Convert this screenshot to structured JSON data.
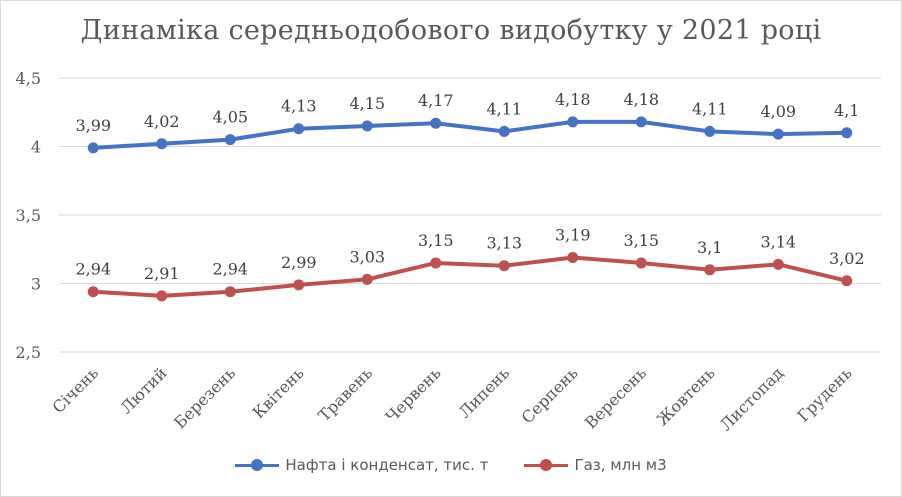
{
  "chart_data": {
    "type": "line",
    "title": "Динаміка середньодобового  видобутку у 2021 році",
    "categories": [
      "Січень",
      "Лютий",
      "Березень",
      "Квітень",
      "Травень",
      "Червень",
      "Липень",
      "Серпень",
      "Вересень",
      "Жовтень",
      "Листопад",
      "Грудень"
    ],
    "series": [
      {
        "name": "Нафта і конденсат, тис. т",
        "color": "#4472c4",
        "values": [
          3.99,
          4.02,
          4.05,
          4.13,
          4.15,
          4.17,
          4.11,
          4.18,
          4.18,
          4.11,
          4.09,
          4.1
        ],
        "labels": [
          "3,99",
          "4,02",
          "4,05",
          "4,13",
          "4,15",
          "4,17",
          "4,11",
          "4,18",
          "4,18",
          "4,11",
          "4,09",
          "4,1"
        ]
      },
      {
        "name": "Газ, млн м3",
        "color": "#c0504d",
        "values": [
          2.94,
          2.91,
          2.94,
          2.99,
          3.03,
          3.15,
          3.13,
          3.19,
          3.15,
          3.1,
          3.14,
          3.02
        ],
        "labels": [
          "2,94",
          "2,91",
          "2,94",
          "2,99",
          "3,03",
          "3,15",
          "3,13",
          "3,19",
          "3,15",
          "3,1",
          "3,14",
          "3,02"
        ]
      }
    ],
    "ylim": [
      2.5,
      4.5
    ],
    "yticks": [
      {
        "value": 2.5,
        "label": "2,5"
      },
      {
        "value": 3,
        "label": "3"
      },
      {
        "value": 3.5,
        "label": "3,5"
      },
      {
        "value": 4,
        "label": "4"
      },
      {
        "value": 4.5,
        "label": "4,5"
      }
    ],
    "grid": true,
    "legend": "bottom"
  }
}
